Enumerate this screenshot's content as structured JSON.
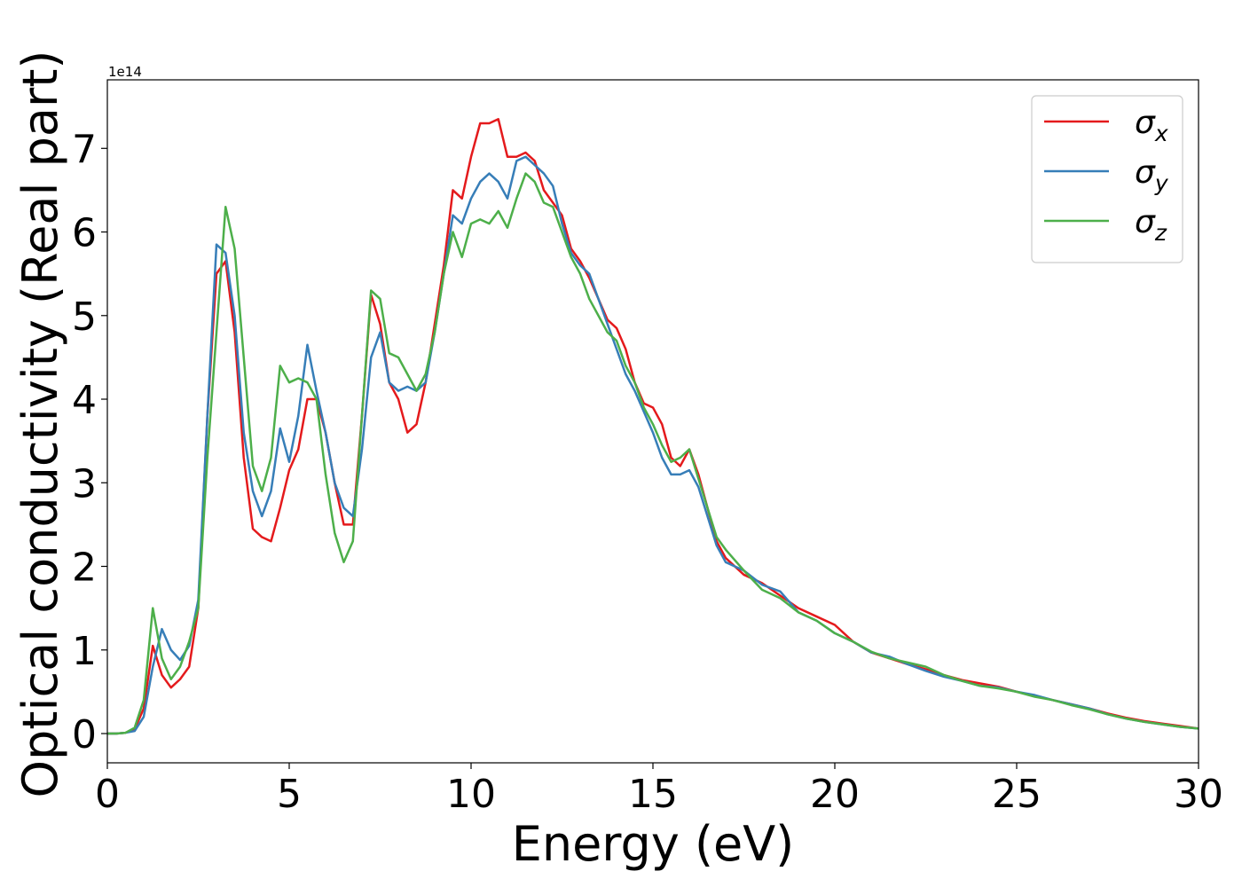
{
  "chart_data": {
    "type": "line",
    "xlabel": "Energy (eV)",
    "ylabel": "Optical conductivity (Real part)",
    "y_offset_label": "1e14",
    "xlim": [
      0,
      30
    ],
    "ylim": [
      -0.35,
      7.82
    ],
    "xticks": [
      0,
      5,
      10,
      15,
      20,
      25,
      30
    ],
    "yticks": [
      0,
      1,
      2,
      3,
      4,
      5,
      6,
      7
    ],
    "legend": "upper right",
    "x": [
      0,
      0.25,
      0.5,
      0.75,
      1,
      1.25,
      1.5,
      1.75,
      2,
      2.25,
      2.5,
      2.75,
      3,
      3.25,
      3.5,
      3.75,
      4,
      4.25,
      4.5,
      4.75,
      5,
      5.25,
      5.5,
      5.75,
      6,
      6.25,
      6.5,
      6.75,
      7,
      7.25,
      7.5,
      7.75,
      8,
      8.25,
      8.5,
      8.75,
      9,
      9.25,
      9.5,
      9.75,
      10,
      10.25,
      10.5,
      10.75,
      11,
      11.25,
      11.5,
      11.75,
      12,
      12.25,
      12.5,
      12.75,
      13,
      13.25,
      13.5,
      13.75,
      14,
      14.25,
      14.5,
      14.75,
      15,
      15.25,
      15.5,
      15.75,
      16,
      16.25,
      16.5,
      16.75,
      17,
      17.5,
      18,
      18.5,
      19,
      19.5,
      20,
      20.5,
      21,
      21.5,
      22,
      22.5,
      23,
      23.5,
      24,
      24.5,
      25,
      25.5,
      26,
      26.5,
      27,
      27.5,
      28,
      28.5,
      29,
      29.5,
      30
    ],
    "series": [
      {
        "name": "σx",
        "color": "#e41a1c",
        "values": [
          0,
          0,
          0.01,
          0.05,
          0.3,
          1.05,
          0.7,
          0.55,
          0.65,
          0.8,
          1.5,
          3.8,
          5.5,
          5.65,
          4.8,
          3.3,
          2.45,
          2.35,
          2.3,
          2.7,
          3.15,
          3.4,
          4.0,
          4.0,
          3.6,
          3.0,
          2.5,
          2.5,
          3.8,
          5.25,
          4.9,
          4.2,
          4.0,
          3.6,
          3.7,
          4.2,
          4.9,
          5.6,
          6.5,
          6.4,
          6.9,
          7.3,
          7.3,
          7.35,
          6.9,
          6.9,
          6.95,
          6.85,
          6.5,
          6.35,
          6.2,
          5.8,
          5.65,
          5.45,
          5.2,
          4.95,
          4.85,
          4.6,
          4.2,
          3.95,
          3.9,
          3.7,
          3.3,
          3.2,
          3.4,
          3.1,
          2.7,
          2.3,
          2.1,
          1.9,
          1.8,
          1.65,
          1.5,
          1.4,
          1.3,
          1.1,
          0.97,
          0.9,
          0.83,
          0.77,
          0.7,
          0.64,
          0.6,
          0.56,
          0.5,
          0.45,
          0.4,
          0.35,
          0.3,
          0.24,
          0.19,
          0.15,
          0.12,
          0.09,
          0.06
        ]
      },
      {
        "name": "σy",
        "color": "#377eb8",
        "values": [
          0,
          0,
          0.01,
          0.03,
          0.2,
          0.8,
          1.25,
          1.0,
          0.88,
          1.05,
          1.6,
          3.8,
          5.85,
          5.75,
          5.0,
          3.6,
          2.9,
          2.6,
          2.9,
          3.65,
          3.25,
          3.8,
          4.65,
          4.1,
          3.6,
          3.0,
          2.7,
          2.6,
          3.4,
          4.5,
          4.8,
          4.2,
          4.1,
          4.15,
          4.1,
          4.2,
          4.8,
          5.5,
          6.2,
          6.1,
          6.4,
          6.6,
          6.7,
          6.6,
          6.4,
          6.85,
          6.9,
          6.8,
          6.7,
          6.55,
          6.1,
          5.75,
          5.6,
          5.5,
          5.2,
          4.9,
          4.6,
          4.3,
          4.1,
          3.85,
          3.6,
          3.3,
          3.1,
          3.1,
          3.15,
          2.95,
          2.6,
          2.25,
          2.05,
          1.95,
          1.78,
          1.7,
          1.45,
          1.35,
          1.2,
          1.1,
          0.97,
          0.92,
          0.83,
          0.75,
          0.68,
          0.63,
          0.57,
          0.55,
          0.5,
          0.46,
          0.4,
          0.35,
          0.3,
          0.23,
          0.18,
          0.14,
          0.11,
          0.08,
          0.06
        ]
      },
      {
        "name": "σz",
        "color": "#4daf4a",
        "values": [
          0,
          0,
          0.01,
          0.07,
          0.4,
          1.5,
          0.9,
          0.65,
          0.8,
          1.1,
          1.5,
          3.3,
          4.8,
          6.3,
          5.8,
          4.5,
          3.2,
          2.9,
          3.3,
          4.4,
          4.2,
          4.25,
          4.2,
          4.0,
          3.1,
          2.4,
          2.05,
          2.3,
          3.8,
          5.3,
          5.2,
          4.55,
          4.5,
          4.3,
          4.1,
          4.3,
          4.8,
          5.5,
          6.0,
          5.7,
          6.1,
          6.15,
          6.1,
          6.25,
          6.05,
          6.4,
          6.7,
          6.6,
          6.35,
          6.3,
          6.0,
          5.7,
          5.5,
          5.2,
          5.0,
          4.8,
          4.7,
          4.4,
          4.2,
          3.9,
          3.7,
          3.45,
          3.25,
          3.3,
          3.4,
          3.05,
          2.7,
          2.35,
          2.2,
          1.95,
          1.72,
          1.62,
          1.45,
          1.35,
          1.2,
          1.1,
          0.98,
          0.9,
          0.85,
          0.8,
          0.7,
          0.63,
          0.57,
          0.54,
          0.5,
          0.44,
          0.4,
          0.34,
          0.29,
          0.23,
          0.18,
          0.14,
          0.11,
          0.08,
          0.06
        ]
      }
    ]
  }
}
